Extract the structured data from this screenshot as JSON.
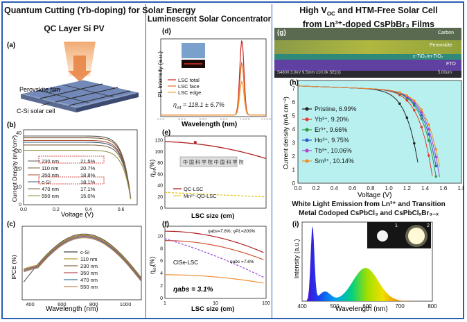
{
  "colors": {
    "frame": "#2a5db0",
    "accent": "#d23a2a"
  },
  "left": {
    "title": "Quantum Cutting (Yb-doping) for Solar Energy",
    "subtitle": "QC Layer Si PV",
    "panel_a": {
      "label": "(a)",
      "perovskite": "Perovskite film",
      "csi": "C-Si solar cell"
    },
    "panel_b": {
      "label": "(b)",
      "ylabel": "Current Density (mA/cm²)",
      "xlabel": "Voltage (V)",
      "xticks": [
        "0.0",
        "0.2",
        "0.4",
        "0.6"
      ],
      "yticks": [
        "0",
        "10",
        "20",
        "30",
        "40"
      ],
      "legend": [
        [
          "230 nm",
          "21.5%"
        ],
        [
          "110 nm",
          "20.7%"
        ],
        [
          "350 nm",
          "18.8%"
        ],
        [
          "c-Si",
          "18.1%"
        ],
        [
          "470 nm",
          "17.1%"
        ],
        [
          "550 nm",
          "15.0%"
        ]
      ]
    },
    "panel_c": {
      "label": "(c)",
      "ylabel": "IPCE (%)",
      "xlabel": "Wavelength (nm)",
      "xticks": [
        "400",
        "600",
        "800",
        "1000"
      ],
      "legend": [
        "c-Si",
        "110 nm",
        "230 nm",
        "350 nm",
        "470 nm",
        "550 nm"
      ]
    }
  },
  "middle": {
    "title": "Luminescent Solar Concentrator",
    "panel_d": {
      "label": "(d)",
      "ylabel": "PL Intensity (a.u.)",
      "xlabel": "Wavelength (nm)",
      "xticks": [
        "600",
        "700",
        "800",
        "900",
        "1000",
        "1100"
      ],
      "legend": [
        "LSC total",
        "LSC face",
        "LSC edge"
      ],
      "eta": "η",
      "eta_sub": "int",
      "eta_val": " = 118.1 ± 6.7%"
    },
    "panel_e": {
      "label": "(e)",
      "ylabel": "η",
      "ylabel_sub": "int",
      "ylabel_rest": "(%)",
      "xlabel": "LSC size (cm)",
      "xticks": [
        "0",
        "20",
        "40",
        "60",
        "80",
        "100"
      ],
      "yticks": [
        "0",
        "20",
        "40",
        "60",
        "80",
        "100",
        "120"
      ],
      "legend": [
        "QC-LSC",
        "Mn²⁺-QD-LSC"
      ]
    },
    "panel_f": {
      "label": "(f)",
      "ylabel": "η",
      "ylabel_sub": "int",
      "ylabel_rest": "(%)",
      "xlabel": "LSC size (cm)",
      "xticks": [
        "1",
        "10",
        "100"
      ],
      "yticks": [
        "0",
        "2",
        "4",
        "6",
        "8",
        "10"
      ],
      "ann1": "ηabs=7.6%; ηPL=200%",
      "ann2": "ηabs =7.6%",
      "ann3": "CISe-LSC",
      "ann4": "ηabs = 3.1%"
    }
  },
  "right": {
    "title_line1": "High V",
    "title_sub": "OC",
    "title_line1b": " and HTM-Free Solar Cell",
    "title_line2": "from Ln³⁺-doped CsPbBr₃ Films",
    "panel_g": {
      "label": "(g)",
      "layers": [
        "Carbon",
        "Perovskite",
        "c-TiO₂/m-TiO₂",
        "FTO"
      ],
      "sem": "S4800 3.0kV 9.5mm x10.0k SE(U)",
      "scale": "5.00um"
    },
    "panel_h": {
      "label": "(h)",
      "ylabel": "Current density (mA cm⁻²)",
      "xlabel": "Voltage (V)",
      "xticks": [
        "0.0",
        "0.2",
        "0.4",
        "0.6",
        "0.8",
        "1.0",
        "1.2",
        "1.4",
        "1.6",
        "1.8"
      ],
      "yticks": [
        "0",
        "1",
        "2",
        "3",
        "4",
        "5",
        "6",
        "7"
      ],
      "legend": [
        [
          "Pristine, 6.99%",
          "#222222"
        ],
        [
          "Yb³⁺, 9.20%",
          "#e03a2a"
        ],
        [
          "Er³⁺, 9.66%",
          "#2a9a3a"
        ],
        [
          "Ho³⁺, 9.75%",
          "#2a5ad0"
        ],
        [
          "Tb³⁺, 10.06%",
          "#b040d0"
        ],
        [
          "Sm³⁺, 10.14%",
          "#f09020"
        ]
      ]
    },
    "title2_line1": "White Light Emission from Ln³⁺ and Transition",
    "title2_line2": "Metal Codoped CsPbCl₃ and CsPbClₓBr₃₋ₓ",
    "panel_i": {
      "label": "(i)",
      "ylabel": "Intensity (a.u.)",
      "xlabel": "Wavelength (nm)",
      "xticks": [
        "400",
        "500",
        "600",
        "700",
        "800"
      ],
      "inset": [
        "1",
        "2"
      ]
    }
  }
}
